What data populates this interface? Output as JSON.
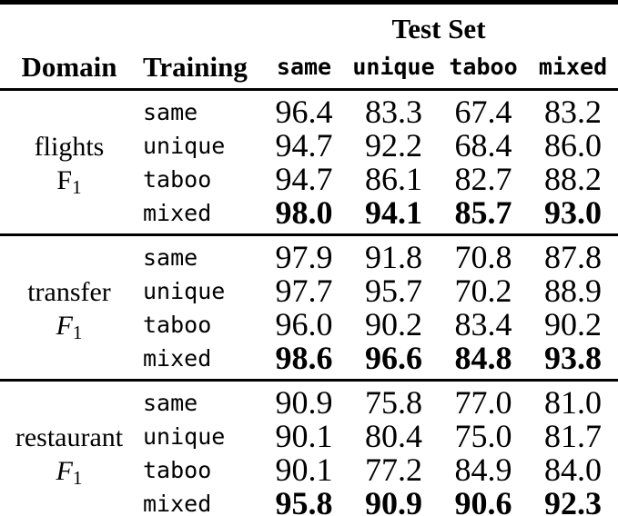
{
  "colors": {
    "text": "#000000",
    "background": "#ffffff",
    "rule": "#000000"
  },
  "table": {
    "test_set_label": "Test Set",
    "domain_header": "Domain",
    "training_header": "Training",
    "test_columns": [
      "same",
      "unique",
      "taboo",
      "mixed"
    ],
    "blocks": [
      {
        "domain": "flights",
        "metric_letter": "F",
        "metric_subscript": "1",
        "rows": [
          {
            "training": "same",
            "values": [
              "96.4",
              "83.3",
              "67.4",
              "83.2"
            ]
          },
          {
            "training": "unique",
            "values": [
              "94.7",
              "92.2",
              "68.4",
              "86.0"
            ]
          },
          {
            "training": "taboo",
            "values": [
              "94.7",
              "86.1",
              "82.7",
              "88.2"
            ]
          },
          {
            "training": "mixed",
            "values": [
              "98.0",
              "94.1",
              "85.7",
              "93.0"
            ]
          }
        ]
      },
      {
        "domain": "transfer",
        "metric_letter": "F",
        "metric_subscript": "1",
        "rows": [
          {
            "training": "same",
            "values": [
              "97.9",
              "91.8",
              "70.8",
              "87.8"
            ]
          },
          {
            "training": "unique",
            "values": [
              "97.7",
              "95.7",
              "70.2",
              "88.9"
            ]
          },
          {
            "training": "taboo",
            "values": [
              "96.0",
              "90.2",
              "83.4",
              "90.2"
            ]
          },
          {
            "training": "mixed",
            "values": [
              "98.6",
              "96.6",
              "84.8",
              "93.8"
            ]
          }
        ]
      },
      {
        "domain": "restaurant",
        "metric_letter": "F",
        "metric_subscript": "1",
        "rows": [
          {
            "training": "same",
            "values": [
              "90.9",
              "75.8",
              "77.0",
              "81.0"
            ]
          },
          {
            "training": "unique",
            "values": [
              "90.1",
              "80.4",
              "75.0",
              "81.7"
            ]
          },
          {
            "training": "taboo",
            "values": [
              "90.1",
              "77.2",
              "84.9",
              "84.0"
            ]
          },
          {
            "training": "mixed",
            "values": [
              "95.8",
              "90.9",
              "90.6",
              "92.3"
            ]
          }
        ]
      }
    ]
  }
}
